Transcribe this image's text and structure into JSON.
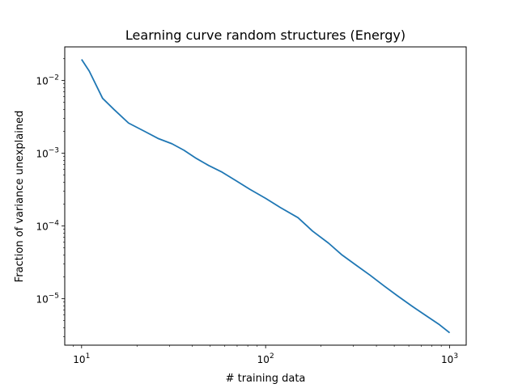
{
  "chart_data": {
    "type": "line",
    "title": "Learning curve random structures (Energy)",
    "xlabel": "# training data",
    "ylabel": "Fraction of variance unexplained",
    "xscale": "log",
    "yscale": "log",
    "xlim": [
      8.1,
      1230
    ],
    "ylim": [
      2.3e-06,
      0.029
    ],
    "grid": false,
    "x_ticks": [
      {
        "value": 10,
        "base": "10",
        "exp": "1"
      },
      {
        "value": 100,
        "base": "10",
        "exp": "2"
      },
      {
        "value": 1000,
        "base": "10",
        "exp": "3"
      }
    ],
    "y_ticks": [
      {
        "value": 1e-05,
        "base": "10",
        "exp": "−5"
      },
      {
        "value": 0.0001,
        "base": "10",
        "exp": "−4"
      },
      {
        "value": 0.001,
        "base": "10",
        "exp": "−3"
      },
      {
        "value": 0.01,
        "base": "10",
        "exp": "−2"
      }
    ],
    "series": [
      {
        "color": "#1f77b4",
        "x": [
          10,
          11,
          13,
          15,
          18,
          22,
          26,
          31,
          36,
          42,
          49,
          58,
          69,
          82,
          100,
          120,
          150,
          180,
          220,
          260,
          310,
          370,
          440,
          520,
          620,
          740,
          880,
          1000
        ],
        "y": [
          0.0195,
          0.0135,
          0.0057,
          0.004,
          0.0026,
          0.002,
          0.0016,
          0.00135,
          0.0011,
          0.00085,
          0.00068,
          0.00055,
          0.00042,
          0.00032,
          0.00024,
          0.00018,
          0.00013,
          8.5e-05,
          5.8e-05,
          4e-05,
          2.9e-05,
          2.1e-05,
          1.5e-05,
          1.1e-05,
          8e-06,
          5.9e-06,
          4.4e-06,
          3.4e-06
        ]
      }
    ]
  }
}
